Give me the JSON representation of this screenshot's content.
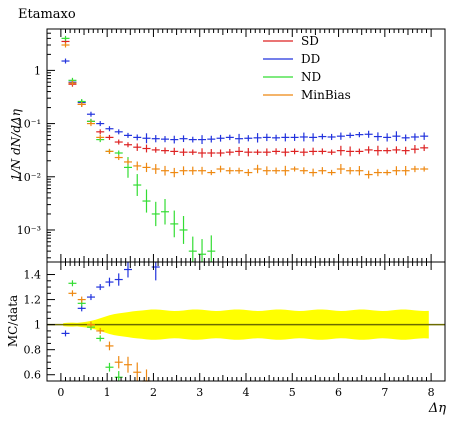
{
  "chart_data": {
    "type": "scatter",
    "title": "Etamaxo",
    "xlabel": "Δη",
    "ylabel_main": "1/N dN/dΔη",
    "ylabel_ratio": "MC/data",
    "x_ticks": [
      "0",
      "1",
      "2",
      "3",
      "4",
      "5",
      "6",
      "7",
      "8"
    ],
    "xlim": [
      -0.3,
      8.3
    ],
    "main": {
      "yscale": "log",
      "ylim": [
        0.00025,
        6
      ],
      "y_ticks": [
        {
          "value": 0.001,
          "label": "10⁻³"
        },
        {
          "value": 0.01,
          "label": "10⁻²"
        },
        {
          "value": 0.1,
          "label": "10⁻¹"
        },
        {
          "value": 1,
          "label": "1"
        }
      ]
    },
    "ratio": {
      "ylim": [
        0.55,
        1.5
      ],
      "y_ticks": [
        "0.6",
        "0.8",
        "1",
        "1.2",
        "1.4"
      ],
      "band_color": "#ffff00",
      "reference_line": 1
    },
    "legend": {
      "placement": "top-right",
      "entries": [
        {
          "name": "SD",
          "color": "#dd2222"
        },
        {
          "name": "DD",
          "color": "#2233dd"
        },
        {
          "name": "ND",
          "color": "#33dd33"
        },
        {
          "name": "MinBias",
          "color": "#ee8811"
        }
      ]
    },
    "series": [
      {
        "name": "SD",
        "color": "#dd2222",
        "points": [
          [
            0.1,
            3.5
          ],
          [
            0.25,
            0.55
          ],
          [
            0.45,
            0.23
          ],
          [
            0.65,
            0.11
          ],
          [
            0.85,
            0.07
          ],
          [
            1.05,
            0.055
          ],
          [
            1.25,
            0.045
          ],
          [
            1.45,
            0.04
          ],
          [
            1.65,
            0.036
          ],
          [
            1.85,
            0.034
          ],
          [
            2.05,
            0.032
          ],
          [
            2.25,
            0.031
          ],
          [
            2.45,
            0.03
          ],
          [
            2.65,
            0.029
          ],
          [
            2.85,
            0.029
          ],
          [
            3.05,
            0.028
          ],
          [
            3.25,
            0.028
          ],
          [
            3.45,
            0.028
          ],
          [
            3.65,
            0.029
          ],
          [
            3.85,
            0.03
          ],
          [
            4.05,
            0.029
          ],
          [
            4.25,
            0.029
          ],
          [
            4.45,
            0.029
          ],
          [
            4.65,
            0.03
          ],
          [
            4.85,
            0.029
          ],
          [
            5.05,
            0.03
          ],
          [
            5.25,
            0.029
          ],
          [
            5.45,
            0.03
          ],
          [
            5.65,
            0.03
          ],
          [
            5.85,
            0.029
          ],
          [
            6.05,
            0.031
          ],
          [
            6.25,
            0.03
          ],
          [
            6.45,
            0.03
          ],
          [
            6.65,
            0.032
          ],
          [
            6.85,
            0.031
          ],
          [
            7.05,
            0.031
          ],
          [
            7.25,
            0.032
          ],
          [
            7.45,
            0.031
          ],
          [
            7.65,
            0.033
          ],
          [
            7.85,
            0.035
          ]
        ]
      },
      {
        "name": "DD",
        "color": "#2233dd",
        "points": [
          [
            0.1,
            1.5
          ],
          [
            0.25,
            0.6
          ],
          [
            0.45,
            0.25
          ],
          [
            0.65,
            0.15
          ],
          [
            0.85,
            0.1
          ],
          [
            1.05,
            0.08
          ],
          [
            1.25,
            0.07
          ],
          [
            1.45,
            0.06
          ],
          [
            1.65,
            0.055
          ],
          [
            1.85,
            0.053
          ],
          [
            2.05,
            0.052
          ],
          [
            2.25,
            0.051
          ],
          [
            2.45,
            0.05
          ],
          [
            2.65,
            0.052
          ],
          [
            2.85,
            0.05
          ],
          [
            3.05,
            0.05
          ],
          [
            3.25,
            0.051
          ],
          [
            3.45,
            0.053
          ],
          [
            3.65,
            0.055
          ],
          [
            3.85,
            0.052
          ],
          [
            4.05,
            0.053
          ],
          [
            4.25,
            0.054
          ],
          [
            4.45,
            0.055
          ],
          [
            4.65,
            0.054
          ],
          [
            4.85,
            0.055
          ],
          [
            5.05,
            0.055
          ],
          [
            5.25,
            0.056
          ],
          [
            5.45,
            0.055
          ],
          [
            5.65,
            0.057
          ],
          [
            5.85,
            0.056
          ],
          [
            6.05,
            0.058
          ],
          [
            6.25,
            0.06
          ],
          [
            6.45,
            0.062
          ],
          [
            6.65,
            0.063
          ],
          [
            6.85,
            0.057
          ],
          [
            7.05,
            0.055
          ],
          [
            7.25,
            0.058
          ],
          [
            7.45,
            0.054
          ],
          [
            7.65,
            0.056
          ],
          [
            7.85,
            0.058
          ]
        ]
      },
      {
        "name": "ND",
        "color": "#33dd33",
        "points": [
          [
            0.1,
            4.0
          ],
          [
            0.25,
            0.65
          ],
          [
            0.45,
            0.26
          ],
          [
            0.65,
            0.11
          ],
          [
            0.85,
            0.05
          ],
          [
            1.05,
            0.03
          ],
          [
            1.25,
            0.028
          ],
          [
            1.45,
            0.015
          ],
          [
            1.65,
            0.007
          ],
          [
            1.85,
            0.0035
          ],
          [
            2.05,
            0.002
          ],
          [
            2.25,
            0.0022
          ],
          [
            2.45,
            0.0013
          ],
          [
            2.65,
            0.001
          ],
          [
            2.85,
            0.0004
          ],
          [
            3.05,
            0.00035
          ],
          [
            3.25,
            0.0004
          ]
        ]
      },
      {
        "name": "MinBias",
        "color": "#ee8811",
        "points": [
          [
            0.1,
            3.0
          ],
          [
            0.25,
            0.58
          ],
          [
            0.45,
            0.23
          ],
          [
            0.65,
            0.1
          ],
          [
            0.85,
            0.055
          ],
          [
            1.05,
            0.03
          ],
          [
            1.25,
            0.023
          ],
          [
            1.45,
            0.019
          ],
          [
            1.65,
            0.016
          ],
          [
            1.85,
            0.015
          ],
          [
            2.05,
            0.014
          ],
          [
            2.25,
            0.013
          ],
          [
            2.45,
            0.012
          ],
          [
            2.65,
            0.013
          ],
          [
            2.85,
            0.013
          ],
          [
            3.05,
            0.013
          ],
          [
            3.25,
            0.012
          ],
          [
            3.45,
            0.014
          ],
          [
            3.65,
            0.013
          ],
          [
            3.85,
            0.013
          ],
          [
            4.05,
            0.012
          ],
          [
            4.25,
            0.014
          ],
          [
            4.45,
            0.013
          ],
          [
            4.65,
            0.013
          ],
          [
            4.85,
            0.013
          ],
          [
            5.05,
            0.014
          ],
          [
            5.25,
            0.013
          ],
          [
            5.45,
            0.012
          ],
          [
            5.65,
            0.013
          ],
          [
            5.85,
            0.012
          ],
          [
            6.05,
            0.014
          ],
          [
            6.25,
            0.013
          ],
          [
            6.45,
            0.013
          ],
          [
            6.65,
            0.011
          ],
          [
            6.85,
            0.012
          ],
          [
            7.05,
            0.012
          ],
          [
            7.25,
            0.013
          ],
          [
            7.45,
            0.013
          ],
          [
            7.65,
            0.014
          ],
          [
            7.85,
            0.014
          ]
        ]
      }
    ],
    "ratio_series": [
      {
        "name": "DD",
        "color": "#2233dd",
        "points": [
          [
            0.1,
            0.93
          ],
          [
            0.45,
            1.13
          ],
          [
            0.65,
            1.22
          ],
          [
            0.85,
            1.3
          ],
          [
            1.05,
            1.34
          ],
          [
            1.25,
            1.36
          ],
          [
            1.45,
            1.44
          ],
          [
            2.05,
            1.46
          ]
        ]
      },
      {
        "name": "ND",
        "color": "#33dd33",
        "points": [
          [
            0.25,
            1.33
          ],
          [
            0.45,
            1.17
          ],
          [
            0.65,
            0.98
          ],
          [
            0.85,
            0.89
          ],
          [
            1.05,
            0.66
          ],
          [
            1.25,
            0.58
          ]
        ]
      },
      {
        "name": "MinBias",
        "color": "#ee8811",
        "points": [
          [
            0.25,
            1.25
          ],
          [
            0.45,
            1.2
          ],
          [
            0.65,
            1.0
          ],
          [
            0.85,
            0.95
          ],
          [
            1.05,
            0.83
          ],
          [
            1.25,
            0.7
          ],
          [
            1.45,
            0.68
          ],
          [
            1.65,
            0.62
          ],
          [
            1.85,
            0.55
          ]
        ]
      }
    ]
  }
}
